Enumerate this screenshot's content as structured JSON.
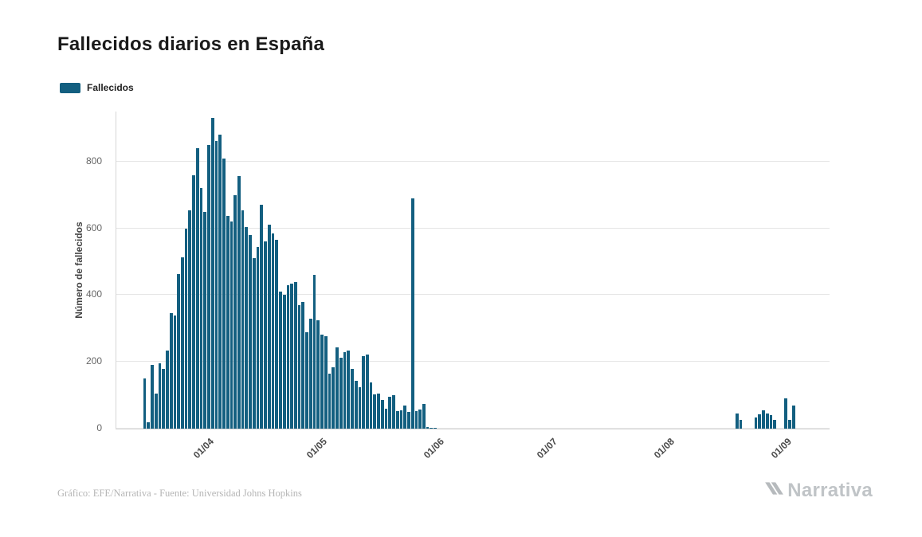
{
  "title": "Fallecidos diarios en España",
  "legend": {
    "label": "Fallecidos"
  },
  "y_axis": {
    "title": "Número de fallecidos",
    "ticks": [
      0,
      200,
      400,
      600,
      800
    ]
  },
  "x_axis": {
    "ticks": [
      "01/04",
      "01/05",
      "01/06",
      "01/07",
      "01/08",
      "01/09"
    ]
  },
  "footer": {
    "credit": "Gráfico: EFE/Narrativa - Fuente: Universidad Johns Hopkins",
    "brand": "Narrativa"
  },
  "colors": {
    "bar": "#135f80",
    "grid": "#e6e6e6",
    "axis": "#d6d6d6"
  },
  "chart_data": {
    "type": "bar",
    "title": "Fallecidos diarios en España",
    "series_name": "Fallecidos",
    "xlabel": "",
    "ylabel": "Número de fallecidos",
    "ylim": [
      0,
      950
    ],
    "grid": "horizontal",
    "legend_position": "top-left",
    "start_date": "08/03",
    "month_lengths": {
      "3": 31,
      "4": 30,
      "5": 31,
      "6": 30,
      "7": 31,
      "8": 31,
      "9": 30
    },
    "x_ticks": [
      "01/04",
      "01/05",
      "01/06",
      "01/07",
      "01/08",
      "01/09"
    ],
    "values": [
      0,
      0,
      0,
      0,
      0,
      0,
      0,
      150,
      20,
      190,
      105,
      195,
      180,
      235,
      345,
      340,
      462,
      514,
      600,
      655,
      760,
      840,
      720,
      650,
      850,
      930,
      862,
      880,
      810,
      638,
      620,
      700,
      757,
      655,
      605,
      580,
      510,
      545,
      670,
      560,
      610,
      585,
      565,
      410,
      400,
      430,
      435,
      440,
      370,
      380,
      290,
      330,
      460,
      325,
      281,
      276,
      164,
      185,
      244,
      213,
      229,
      234,
      179,
      143,
      123,
      217,
      221,
      138,
      102,
      104,
      87,
      59,
      95,
      100,
      52,
      56,
      70,
      50,
      690,
      52,
      57,
      75,
      4,
      2,
      2,
      0,
      0,
      0,
      0,
      0,
      0,
      0,
      0,
      0,
      0,
      0,
      0,
      0,
      0,
      0,
      0,
      0,
      0,
      0,
      0,
      0,
      0,
      0,
      0,
      0,
      0,
      0,
      0,
      0,
      0,
      0,
      0,
      0,
      0,
      0,
      0,
      0,
      0,
      0,
      0,
      0,
      0,
      0,
      0,
      0,
      0,
      0,
      0,
      0,
      0,
      0,
      0,
      0,
      0,
      0,
      0,
      0,
      0,
      0,
      0,
      0,
      0,
      0,
      0,
      0,
      0,
      0,
      0,
      0,
      0,
      0,
      0,
      0,
      0,
      0,
      0,
      0,
      0,
      0,
      46,
      26,
      0,
      0,
      0,
      34,
      42,
      56,
      46,
      40,
      26,
      0,
      0,
      90,
      26,
      70,
      0,
      0,
      0,
      0,
      0,
      0,
      0,
      0,
      0
    ]
  }
}
